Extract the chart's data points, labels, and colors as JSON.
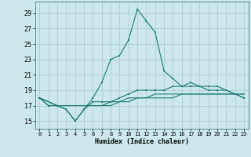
{
  "xlabel": "Humidex (Indice chaleur)",
  "background_color": "#cce8ec",
  "grid_color": "#aacccc",
  "line_color": "#1a7a72",
  "xlim": [
    -0.5,
    23.5
  ],
  "ylim": [
    14.0,
    30.5
  ],
  "x_ticks": [
    0,
    1,
    2,
    3,
    4,
    5,
    6,
    7,
    8,
    9,
    10,
    11,
    12,
    13,
    14,
    15,
    16,
    17,
    18,
    19,
    20,
    21,
    22,
    23
  ],
  "y_ticks": [
    15,
    17,
    19,
    21,
    23,
    25,
    27,
    29
  ],
  "series1": [
    18.0,
    17.0,
    17.0,
    16.5,
    15.0,
    16.5,
    18.0,
    20.0,
    23.0,
    23.5,
    25.5,
    29.5,
    28.0,
    26.5,
    21.5,
    20.5,
    19.5,
    20.0,
    19.5,
    19.0,
    19.0,
    19.0,
    18.5,
    18.0
  ],
  "series2": [
    18.0,
    17.0,
    17.0,
    16.5,
    15.0,
    16.5,
    17.5,
    17.5,
    17.5,
    18.0,
    18.5,
    19.0,
    19.0,
    19.0,
    19.0,
    19.5,
    19.5,
    19.5,
    19.5,
    19.5,
    19.5,
    19.0,
    18.5,
    18.0
  ],
  "series3": [
    18.0,
    17.5,
    17.0,
    17.0,
    17.0,
    17.0,
    17.0,
    17.0,
    17.5,
    17.5,
    18.0,
    18.0,
    18.0,
    18.5,
    18.5,
    18.5,
    18.5,
    18.5,
    18.5,
    18.5,
    18.5,
    18.5,
    18.5,
    18.5
  ],
  "series4": [
    18.0,
    17.5,
    17.0,
    17.0,
    17.0,
    17.0,
    17.0,
    17.0,
    17.0,
    17.5,
    17.5,
    18.0,
    18.0,
    18.0,
    18.0,
    18.0,
    18.5,
    18.5,
    18.5,
    18.5,
    18.5,
    18.5,
    18.5,
    18.5
  ]
}
